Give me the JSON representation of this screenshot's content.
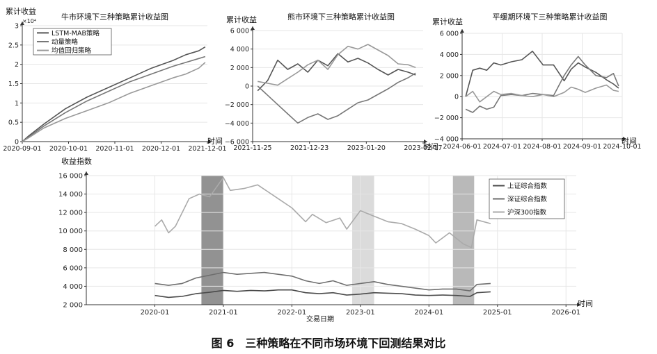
{
  "caption": "图 6　三种策略在不同市场环境下回测结果对比",
  "chart_data": [
    {
      "type": "line",
      "title": "牛市环境下三种策略累计收益图",
      "ylabel": "累计收益",
      "y_multiplier": "×10⁴",
      "xlabel": "时间",
      "ylim": [
        0,
        3
      ],
      "yticks": [
        "0",
        "0.5",
        "1",
        "1.5",
        "2",
        "2.5",
        "3"
      ],
      "xticks": [
        "2020-09-01",
        "2020-10-01",
        "2020-11-01",
        "2020-12-01",
        "2021-12-01"
      ],
      "xlim": [
        0,
        4.3
      ],
      "legend_position": "top-left",
      "series": [
        {
          "name": "LSTM-MAB策略",
          "color": "#555555",
          "x": [
            0,
            0.15,
            0.5,
            1.0,
            1.5,
            2.0,
            2.5,
            3.0,
            3.5,
            3.8,
            4.1,
            4.25
          ],
          "y": [
            0,
            0.15,
            0.45,
            0.85,
            1.15,
            1.4,
            1.65,
            1.9,
            2.1,
            2.25,
            2.35,
            2.45
          ]
        },
        {
          "name": "动量策略",
          "color": "#777777",
          "x": [
            0,
            0.15,
            0.5,
            1.0,
            1.5,
            2.0,
            2.5,
            3.0,
            3.5,
            3.8,
            4.1,
            4.25
          ],
          "y": [
            0,
            0.12,
            0.4,
            0.75,
            1.05,
            1.3,
            1.55,
            1.75,
            1.95,
            2.05,
            2.15,
            2.2
          ]
        },
        {
          "name": "均值回归策略",
          "color": "#999999",
          "x": [
            0,
            0.15,
            0.5,
            1.0,
            1.5,
            2.0,
            2.5,
            3.0,
            3.5,
            3.8,
            4.1,
            4.25
          ],
          "y": [
            0,
            0.1,
            0.35,
            0.6,
            0.8,
            1.0,
            1.25,
            1.45,
            1.65,
            1.75,
            1.9,
            2.05
          ]
        }
      ]
    },
    {
      "type": "line",
      "title": "熊市环境下三种策略累计收益图",
      "ylabel": "累计收益",
      "xlabel": "时间",
      "ylim": [
        -6000,
        6000
      ],
      "yticks": [
        "−6 000",
        "−4 000",
        "−2 000",
        "0",
        "2 000",
        "4 000",
        "6 000"
      ],
      "xticks": [
        "2021-11-25",
        "2021-12-23",
        "2023-01-20",
        "2023-02-17"
      ],
      "xlim": [
        -0.1,
        3.3
      ],
      "series": [
        {
          "color": "#555555",
          "x": [
            0,
            0.2,
            0.4,
            0.6,
            0.8,
            1.0,
            1.2,
            1.4,
            1.6,
            1.8,
            2.0,
            2.2,
            2.4,
            2.6,
            2.8,
            3.0,
            3.15
          ],
          "y": [
            -500,
            600,
            2800,
            1800,
            2400,
            1500,
            2800,
            2200,
            3500,
            2600,
            3000,
            2500,
            1800,
            1200,
            1800,
            1500,
            1200
          ]
        },
        {
          "color": "#777777",
          "x": [
            0,
            0.2,
            0.4,
            0.6,
            0.8,
            1.0,
            1.2,
            1.4,
            1.6,
            1.8,
            2.0,
            2.2,
            2.4,
            2.6,
            2.8,
            3.0,
            3.15
          ],
          "y": [
            0,
            -1000,
            -2000,
            -3000,
            -4000,
            -3400,
            -3000,
            -3600,
            -3200,
            -2500,
            -1800,
            -1500,
            -900,
            -300,
            400,
            900,
            1400
          ]
        },
        {
          "color": "#999999",
          "x": [
            0,
            0.2,
            0.4,
            0.6,
            0.8,
            1.0,
            1.2,
            1.4,
            1.6,
            1.8,
            2.0,
            2.2,
            2.4,
            2.6,
            2.8,
            3.0,
            3.15
          ],
          "y": [
            500,
            300,
            100,
            800,
            1500,
            2300,
            2800,
            1800,
            3400,
            4300,
            4000,
            4500,
            3900,
            3300,
            2400,
            2300,
            2000
          ]
        }
      ]
    },
    {
      "type": "line",
      "title": "平缓期环境下三种策略累计收益图",
      "ylabel": "累计收益",
      "xlabel": "时间",
      "ylim": [
        -4000,
        6000
      ],
      "yticks": [
        "−4 000",
        "−2 000",
        "0",
        "2 000",
        "4 000",
        "6 000"
      ],
      "xticks": [
        "2024-06-01",
        "2024-07-01",
        "2024-08-01",
        "2024-09-01",
        "2024-10-01"
      ],
      "xlim": [
        -0.1,
        4.45
      ],
      "series": [
        {
          "color": "#555555",
          "x": [
            0,
            0.2,
            0.4,
            0.6,
            0.8,
            1.0,
            1.3,
            1.6,
            1.9,
            2.2,
            2.5,
            2.8,
            3.0,
            3.2,
            3.4,
            3.7,
            4.0,
            4.2,
            4.35
          ],
          "y": [
            0,
            2500,
            2700,
            2500,
            3200,
            3000,
            3300,
            3500,
            4300,
            3000,
            3000,
            1500,
            2600,
            3200,
            2800,
            2300,
            1600,
            1200,
            800
          ]
        },
        {
          "color": "#777777",
          "x": [
            0,
            0.2,
            0.4,
            0.6,
            0.8,
            1.0,
            1.3,
            1.6,
            1.9,
            2.2,
            2.5,
            2.8,
            3.0,
            3.2,
            3.4,
            3.7,
            4.0,
            4.2,
            4.35
          ],
          "y": [
            -1200,
            -1500,
            -900,
            -1200,
            -1000,
            100,
            200,
            100,
            300,
            200,
            100,
            2000,
            3000,
            3800,
            3000,
            2000,
            1800,
            2200,
            1000
          ]
        },
        {
          "color": "#999999",
          "x": [
            0,
            0.2,
            0.4,
            0.6,
            0.8,
            1.0,
            1.3,
            1.6,
            1.9,
            2.2,
            2.5,
            2.8,
            3.0,
            3.2,
            3.4,
            3.7,
            4.0,
            4.2,
            4.35
          ],
          "y": [
            0,
            500,
            -500,
            0,
            500,
            200,
            300,
            100,
            0,
            200,
            0,
            400,
            900,
            700,
            400,
            800,
            1100,
            600,
            500
          ]
        }
      ]
    },
    {
      "type": "line",
      "title": "",
      "ylabel": "收益指数",
      "xlabel": "交易日期",
      "x_axis_arrow_label": "时间",
      "ylim": [
        2000,
        16000
      ],
      "yticks": [
        "2 000",
        "4 000",
        "6 000",
        "8 000",
        "10 000",
        "12 000",
        "14 000",
        "16 000"
      ],
      "xticks": [
        "2020-01",
        "2021-01",
        "2022-01",
        "2023-01",
        "2024-01",
        "2025-01",
        "2026-01"
      ],
      "xlim": [
        2019.0,
        2026.15
      ],
      "legend_position": "right",
      "shaded_regions": [
        {
          "start": 2020.68,
          "end": 2021.0,
          "color": "#8c8c8c"
        },
        {
          "start": 2022.88,
          "end": 2023.2,
          "color": "#d9d9d9"
        },
        {
          "start": 2024.35,
          "end": 2024.66,
          "color": "#b5b5b5"
        }
      ],
      "series": [
        {
          "name": "上证综合指数",
          "color": "#4a4a4a",
          "x": [
            2020.0,
            2020.2,
            2020.4,
            2020.6,
            2020.8,
            2021.0,
            2021.2,
            2021.4,
            2021.6,
            2021.8,
            2022.0,
            2022.2,
            2022.4,
            2022.6,
            2022.8,
            2023.0,
            2023.2,
            2023.4,
            2023.6,
            2023.8,
            2024.0,
            2024.2,
            2024.4,
            2024.6,
            2024.7,
            2024.9
          ],
          "y": [
            3000,
            2800,
            2900,
            3200,
            3350,
            3550,
            3450,
            3550,
            3500,
            3600,
            3600,
            3300,
            3200,
            3300,
            3050,
            3150,
            3300,
            3250,
            3200,
            3050,
            3000,
            3050,
            3000,
            2900,
            3300,
            3400
          ]
        },
        {
          "name": "深证综合指数",
          "color": "#6e6e6e",
          "x": [
            2020.0,
            2020.2,
            2020.4,
            2020.6,
            2020.8,
            2021.0,
            2021.2,
            2021.4,
            2021.6,
            2021.8,
            2022.0,
            2022.2,
            2022.4,
            2022.6,
            2022.8,
            2023.0,
            2023.2,
            2023.4,
            2023.6,
            2023.8,
            2024.0,
            2024.2,
            2024.4,
            2024.6,
            2024.7,
            2024.9
          ],
          "y": [
            4300,
            4100,
            4300,
            4900,
            5200,
            5500,
            5300,
            5400,
            5500,
            5300,
            5100,
            4600,
            4300,
            4600,
            4100,
            4300,
            4500,
            4200,
            4000,
            3800,
            3600,
            3700,
            3700,
            3500,
            4200,
            4300
          ]
        },
        {
          "name": "沪深300指数",
          "color": "#aaaaaa",
          "x": [
            2020.0,
            2020.1,
            2020.2,
            2020.3,
            2020.5,
            2020.65,
            2020.8,
            2021.0,
            2021.1,
            2021.3,
            2021.5,
            2021.6,
            2021.8,
            2022.0,
            2022.2,
            2022.3,
            2022.5,
            2022.7,
            2022.8,
            2023.0,
            2023.2,
            2023.4,
            2023.6,
            2023.8,
            2024.0,
            2024.1,
            2024.3,
            2024.5,
            2024.62,
            2024.7,
            2024.9
          ],
          "y": [
            10500,
            11200,
            9800,
            10500,
            13500,
            14000,
            13700,
            15800,
            14400,
            14600,
            15000,
            14500,
            13500,
            12500,
            11000,
            11800,
            10900,
            11400,
            10200,
            12200,
            11600,
            11000,
            10800,
            10200,
            9500,
            8700,
            9800,
            8600,
            8200,
            11200,
            10800
          ]
        }
      ]
    }
  ]
}
